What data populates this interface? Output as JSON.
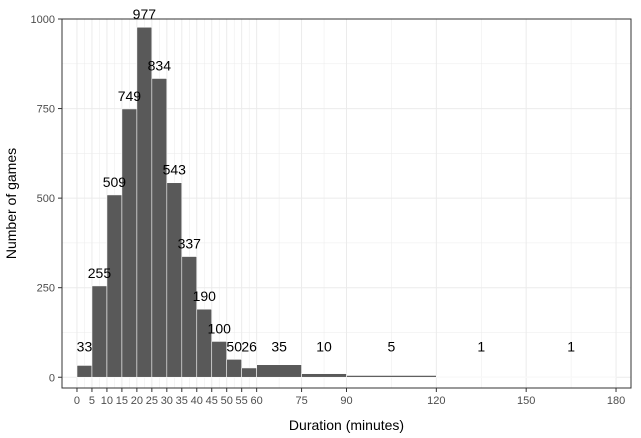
{
  "chart_data": {
    "type": "bar",
    "title": "",
    "xlabel": "Duration (minutes)",
    "ylabel": "Number of games",
    "bins": [
      {
        "start": 0,
        "end": 5,
        "count": 33
      },
      {
        "start": 5,
        "end": 10,
        "count": 255
      },
      {
        "start": 10,
        "end": 15,
        "count": 509
      },
      {
        "start": 15,
        "end": 20,
        "count": 749
      },
      {
        "start": 20,
        "end": 25,
        "count": 977
      },
      {
        "start": 25,
        "end": 30,
        "count": 834
      },
      {
        "start": 30,
        "end": 35,
        "count": 543
      },
      {
        "start": 35,
        "end": 40,
        "count": 337
      },
      {
        "start": 40,
        "end": 45,
        "count": 190
      },
      {
        "start": 45,
        "end": 50,
        "count": 100
      },
      {
        "start": 50,
        "end": 55,
        "count": 50
      },
      {
        "start": 55,
        "end": 60,
        "count": 26
      },
      {
        "start": 60,
        "end": 75,
        "count": 35
      },
      {
        "start": 75,
        "end": 90,
        "count": 10
      },
      {
        "start": 90,
        "end": 120,
        "count": 5
      },
      {
        "start": 120,
        "end": 150,
        "count": 1
      },
      {
        "start": 150,
        "end": 180,
        "count": 1
      }
    ],
    "x_ticks": [
      0,
      5,
      10,
      15,
      20,
      25,
      30,
      35,
      40,
      45,
      50,
      55,
      60,
      75,
      90,
      120,
      150,
      180
    ],
    "y_ticks": [
      0,
      250,
      500,
      750,
      1000
    ],
    "xlim": [
      -5,
      185
    ],
    "ylim": [
      -30,
      1000
    ],
    "grid": true,
    "colors": {
      "bar": "#595959",
      "panel_background": "#ffffff",
      "grid": "#ebebeb",
      "border": "#333333",
      "tick_text": "#4d4d4d"
    }
  }
}
